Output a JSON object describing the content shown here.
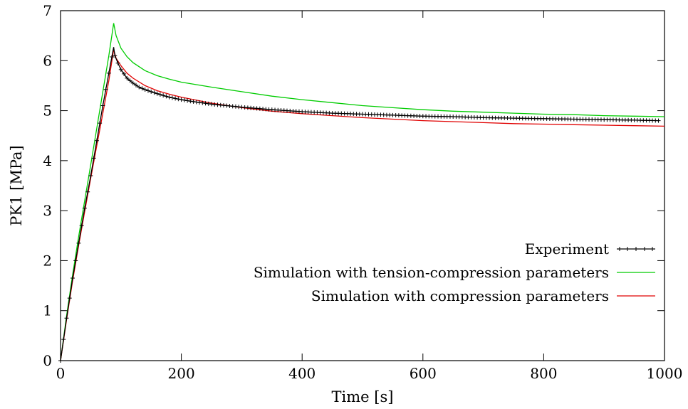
{
  "chart_data": {
    "type": "line",
    "xlabel": "Time [s]",
    "ylabel": "PK1 [MPa]",
    "xlim": [
      0,
      1000
    ],
    "ylim": [
      0,
      7
    ],
    "x_ticks": [
      0,
      200,
      400,
      600,
      800,
      1000
    ],
    "y_ticks": [
      0,
      1,
      2,
      3,
      4,
      5,
      6,
      7
    ],
    "grid": false,
    "legend_position": "right",
    "series": [
      {
        "name": "Experiment",
        "color": "#000000",
        "marker": "plus",
        "x": [
          0,
          10,
          20,
          30,
          40,
          50,
          60,
          70,
          80,
          88,
          90,
          95,
          100,
          110,
          120,
          130,
          140,
          150,
          160,
          180,
          200,
          220,
          250,
          300,
          350,
          400,
          450,
          500,
          550,
          600,
          650,
          700,
          750,
          800,
          850,
          900,
          950,
          990
        ],
        "y": [
          0,
          0.85,
          1.65,
          2.35,
          3.05,
          3.7,
          4.4,
          5.1,
          5.75,
          6.27,
          6.1,
          5.95,
          5.82,
          5.65,
          5.55,
          5.47,
          5.42,
          5.38,
          5.34,
          5.27,
          5.22,
          5.18,
          5.13,
          5.07,
          5.02,
          4.98,
          4.95,
          4.93,
          4.91,
          4.89,
          4.88,
          4.86,
          4.85,
          4.84,
          4.83,
          4.82,
          4.81,
          4.8
        ]
      },
      {
        "name": "Simulation with tension-compression parameters",
        "color": "#00cc00",
        "marker": "none",
        "x": [
          0,
          10,
          20,
          30,
          40,
          50,
          60,
          70,
          80,
          88,
          92,
          100,
          110,
          120,
          140,
          160,
          180,
          200,
          250,
          300,
          350,
          400,
          450,
          500,
          550,
          600,
          650,
          700,
          750,
          800,
          850,
          900,
          950,
          1000
        ],
        "y": [
          0,
          0.9,
          1.72,
          2.48,
          3.2,
          3.92,
          4.65,
          5.38,
          6.1,
          6.75,
          6.5,
          6.25,
          6.08,
          5.96,
          5.8,
          5.7,
          5.63,
          5.57,
          5.47,
          5.38,
          5.29,
          5.22,
          5.16,
          5.1,
          5.06,
          5.02,
          4.99,
          4.97,
          4.95,
          4.93,
          4.92,
          4.9,
          4.89,
          4.88
        ]
      },
      {
        "name": "Simulation with compression parameters",
        "color": "#e00000",
        "marker": "none",
        "x": [
          0,
          10,
          20,
          30,
          40,
          50,
          60,
          70,
          80,
          88,
          92,
          100,
          110,
          120,
          140,
          160,
          180,
          200,
          250,
          300,
          350,
          400,
          450,
          500,
          550,
          600,
          650,
          700,
          750,
          800,
          850,
          900,
          950,
          1000
        ],
        "y": [
          0,
          0.82,
          1.6,
          2.3,
          2.98,
          3.65,
          4.3,
          4.95,
          5.6,
          6.22,
          6.05,
          5.9,
          5.75,
          5.65,
          5.5,
          5.4,
          5.33,
          5.27,
          5.15,
          5.06,
          4.99,
          4.94,
          4.9,
          4.86,
          4.83,
          4.8,
          4.78,
          4.76,
          4.74,
          4.73,
          4.72,
          4.71,
          4.7,
          4.69
        ]
      }
    ]
  }
}
